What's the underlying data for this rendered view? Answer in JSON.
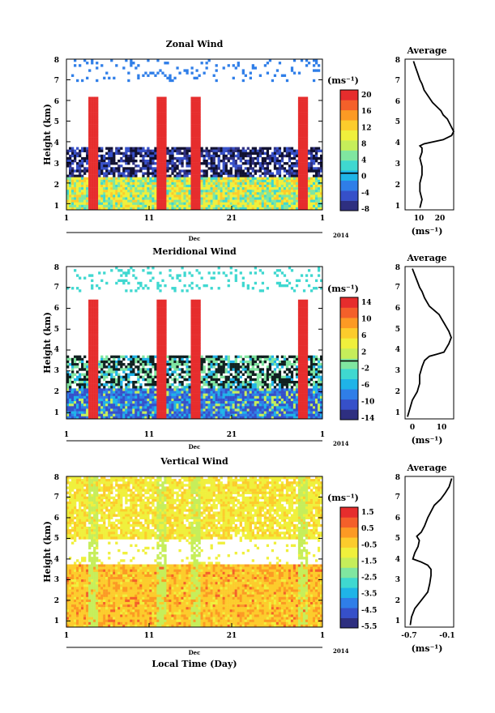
{
  "chart_data": [
    {
      "type": "heatmap",
      "title": "Zonal Wind",
      "ylabel": "Height (km)",
      "yticks": [
        "1",
        "2",
        "3",
        "4",
        "5",
        "6",
        "7",
        "8"
      ],
      "ylim": [
        0.7,
        8
      ],
      "xticks": [
        "1",
        "11",
        "21",
        "1"
      ],
      "month_label": "Dec",
      "year_label": "2014",
      "colorbar": {
        "label": "(ms⁻¹)",
        "ticks": [
          "20",
          "16",
          "12",
          "8",
          "4",
          "0",
          "-4",
          "-8"
        ],
        "range": [
          -10,
          22
        ]
      },
      "profile": {
        "title": "Average",
        "xticks": [
          "10",
          "20"
        ],
        "xlabel": "(ms⁻¹)",
        "xlim": [
          4,
          27
        ],
        "x": [
          11,
          12,
          11,
          11,
          12,
          12,
          11,
          12,
          12,
          11,
          13,
          22,
          26,
          27,
          26,
          25,
          24,
          22,
          21,
          19,
          17,
          15,
          13,
          12,
          11,
          10,
          9,
          8
        ],
        "y": [
          0.8,
          1.2,
          1.6,
          2.0,
          2.4,
          2.8,
          3.2,
          3.5,
          3.7,
          3.8,
          3.9,
          4.1,
          4.3,
          4.5,
          4.7,
          4.9,
          5.1,
          5.3,
          5.5,
          5.7,
          5.9,
          6.2,
          6.5,
          6.8,
          7.0,
          7.3,
          7.6,
          7.9
        ]
      }
    },
    {
      "type": "heatmap",
      "title": "Meridional Wind",
      "ylabel": "Height (km)",
      "yticks": [
        "1",
        "2",
        "3",
        "4",
        "5",
        "6",
        "7",
        "8"
      ],
      "ylim": [
        0.7,
        8
      ],
      "xticks": [
        "1",
        "11",
        "21",
        "1"
      ],
      "month_label": "Dec",
      "year_label": "2014",
      "colorbar": {
        "label": "(ms⁻¹)",
        "ticks": [
          "14",
          "10",
          "6",
          "2",
          "-2",
          "-6",
          "-10",
          "-14"
        ],
        "range": [
          -15,
          16
        ]
      },
      "profile": {
        "title": "Average",
        "xticks": [
          "0",
          "10"
        ],
        "xlabel": "(ms⁻¹)",
        "xlim": [
          -4,
          16
        ],
        "x": [
          -3,
          -2,
          -1,
          1,
          2,
          2,
          3,
          4,
          6,
          9,
          12,
          13,
          14,
          15,
          14,
          13,
          12,
          11,
          10,
          8,
          6,
          5,
          4,
          3,
          2,
          1,
          0,
          -1
        ],
        "y": [
          0.8,
          1.2,
          1.6,
          2.0,
          2.4,
          2.8,
          3.2,
          3.5,
          3.7,
          3.8,
          3.9,
          4.1,
          4.3,
          4.6,
          4.9,
          5.1,
          5.3,
          5.5,
          5.7,
          5.9,
          6.1,
          6.3,
          6.5,
          6.8,
          7.0,
          7.3,
          7.6,
          7.9
        ]
      }
    },
    {
      "type": "heatmap",
      "title": "Vertical Wind",
      "ylabel": "Height (km)",
      "xlabel": "Local Time (Day)",
      "yticks": [
        "1",
        "2",
        "3",
        "4",
        "5",
        "6",
        "7",
        "8"
      ],
      "ylim": [
        0.7,
        8
      ],
      "xticks": [
        "1",
        "11",
        "21",
        "1"
      ],
      "month_label": "Dec",
      "year_label": "2014",
      "colorbar": {
        "label": "(ms⁻¹)",
        "ticks": [
          "1.5",
          "0.5",
          "-0.5",
          "-1.5",
          "-2.5",
          "-3.5",
          "-4.5",
          "-5.5"
        ],
        "range": [
          -6,
          2
        ]
      },
      "profile": {
        "title": "Average",
        "xticks": [
          "-0.7",
          "-0.1"
        ],
        "xlabel": "(ms⁻¹)",
        "xlim": [
          -0.8,
          -0.05
        ],
        "x": [
          -0.72,
          -0.7,
          -0.65,
          -0.55,
          -0.45,
          -0.42,
          -0.4,
          -0.4,
          -0.45,
          -0.55,
          -0.68,
          -0.65,
          -0.6,
          -0.58,
          -0.62,
          -0.55,
          -0.5,
          -0.45,
          -0.4,
          -0.35,
          -0.25,
          -0.18,
          -0.12,
          -0.08
        ],
        "y": [
          0.8,
          1.2,
          1.6,
          2.0,
          2.4,
          2.8,
          3.2,
          3.5,
          3.7,
          3.85,
          4.0,
          4.3,
          4.6,
          4.9,
          5.1,
          5.3,
          5.6,
          6.0,
          6.3,
          6.6,
          6.9,
          7.2,
          7.5,
          7.9
        ]
      }
    }
  ],
  "colormap": [
    "#2e2f80",
    "#3650c9",
    "#2f7ee8",
    "#1fb4e8",
    "#3fd8d0",
    "#80e6a0",
    "#c6ee5a",
    "#f0f03c",
    "#fccc2c",
    "#fc9a24",
    "#f4602a",
    "#e62d2d"
  ]
}
